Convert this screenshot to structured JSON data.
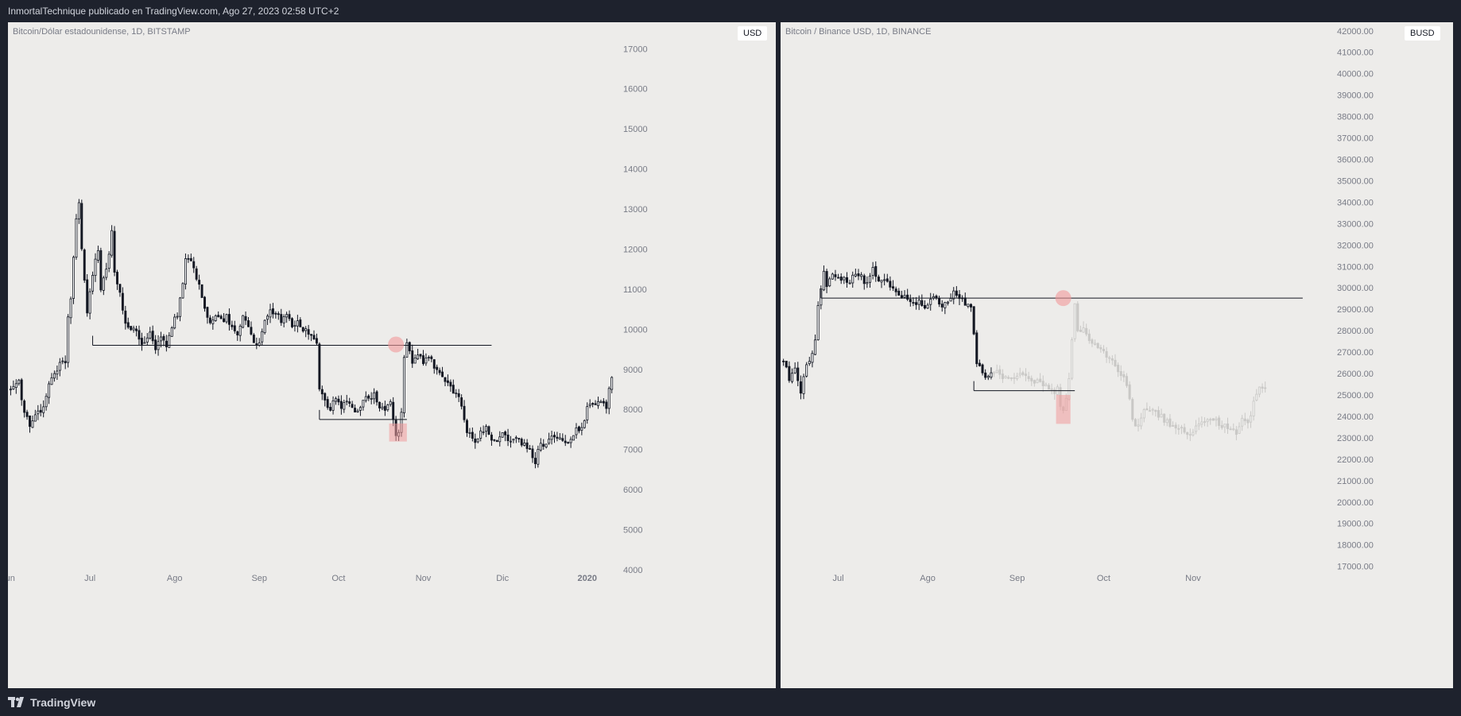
{
  "header": {
    "publisher_line": "InmortalTechnique publicado en TradingView.com, Ago 27, 2023 02:58 UTC+2"
  },
  "footer": {
    "brand": "TradingView"
  },
  "chart_data": [
    {
      "type": "candlestick",
      "title": "Bitcoin/Dólar estadounidense, 1D, BITSTAMP",
      "currency": "USD",
      "yaxis_ticks": [
        "4000",
        "5000",
        "6000",
        "7000",
        "8000",
        "9000",
        "10000",
        "11000",
        "12000",
        "13000",
        "14000",
        "15000",
        "16000",
        "17000"
      ],
      "ylim": [
        3980,
        17660
      ],
      "xaxis_ticks": [
        {
          "label": "Jun",
          "day": -1
        },
        {
          "label": "Jul",
          "day": 29
        },
        {
          "label": "Ago",
          "day": 60
        },
        {
          "label": "Sep",
          "day": 91
        },
        {
          "label": "Oct",
          "day": 120
        },
        {
          "label": "Nov",
          "day": 151
        },
        {
          "label": "Dic",
          "day": 180
        },
        {
          "label": "2020",
          "day": 211
        }
      ],
      "xlim": [
        -1,
        223
      ],
      "close_path": [
        [
          0,
          8500
        ],
        [
          3,
          8700
        ],
        [
          5,
          7900
        ],
        [
          7,
          7600
        ],
        [
          9,
          7800
        ],
        [
          12,
          8100
        ],
        [
          14,
          8600
        ],
        [
          16,
          8900
        ],
        [
          18,
          9100
        ],
        [
          20,
          9200
        ],
        [
          21,
          10300
        ],
        [
          22,
          10800
        ],
        [
          23,
          11800
        ],
        [
          24,
          12800
        ],
        [
          25,
          13200
        ],
        [
          26,
          12000
        ],
        [
          27,
          11200
        ],
        [
          28,
          10400
        ],
        [
          29,
          11000
        ],
        [
          31,
          11700
        ],
        [
          32,
          11900
        ],
        [
          33,
          11000
        ],
        [
          35,
          11500
        ],
        [
          37,
          12400
        ],
        [
          38,
          11400
        ],
        [
          40,
          11000
        ],
        [
          41,
          10400
        ],
        [
          43,
          10000
        ],
        [
          45,
          10100
        ],
        [
          47,
          9700
        ],
        [
          49,
          9600
        ],
        [
          51,
          9900
        ],
        [
          53,
          9500
        ],
        [
          55,
          9800
        ],
        [
          57,
          9600
        ],
        [
          59,
          10100
        ],
        [
          61,
          10400
        ],
        [
          63,
          11200
        ],
        [
          64,
          11700
        ],
        [
          65,
          11800
        ],
        [
          67,
          11500
        ],
        [
          69,
          11100
        ],
        [
          71,
          10600
        ],
        [
          73,
          10100
        ],
        [
          75,
          10400
        ],
        [
          77,
          10200
        ],
        [
          79,
          10300
        ],
        [
          81,
          10000
        ],
        [
          83,
          9900
        ],
        [
          85,
          10400
        ],
        [
          87,
          10100
        ],
        [
          89,
          9700
        ],
        [
          91,
          9600
        ],
        [
          93,
          10200
        ],
        [
          95,
          10500
        ],
        [
          97,
          10400
        ],
        [
          99,
          10200
        ],
        [
          101,
          10300
        ],
        [
          103,
          10100
        ],
        [
          105,
          10200
        ],
        [
          107,
          10000
        ],
        [
          110,
          9800
        ],
        [
          112,
          9600
        ],
        [
          113,
          8500
        ],
        [
          115,
          8200
        ],
        [
          117,
          8000
        ],
        [
          119,
          8300
        ],
        [
          121,
          8100
        ],
        [
          123,
          8200
        ],
        [
          125,
          8000
        ],
        [
          127,
          7900
        ],
        [
          129,
          8200
        ],
        [
          131,
          8300
        ],
        [
          133,
          8400
        ],
        [
          135,
          8100
        ],
        [
          137,
          8000
        ],
        [
          139,
          8200
        ],
        [
          140,
          7700
        ],
        [
          141,
          7400
        ],
        [
          142,
          7500
        ],
        [
          143,
          8000
        ],
        [
          144,
          9300
        ],
        [
          145,
          9600
        ],
        [
          147,
          9200
        ],
        [
          149,
          9300
        ],
        [
          151,
          9200
        ],
        [
          153,
          9300
        ],
        [
          155,
          9100
        ],
        [
          157,
          8900
        ],
        [
          159,
          8700
        ],
        [
          161,
          8500
        ],
        [
          163,
          8400
        ],
        [
          165,
          8100
        ],
        [
          167,
          7500
        ],
        [
          169,
          7300
        ],
        [
          170,
          7100
        ],
        [
          172,
          7400
        ],
        [
          174,
          7500
        ],
        [
          176,
          7300
        ],
        [
          178,
          7200
        ],
        [
          180,
          7400
        ],
        [
          182,
          7200
        ],
        [
          184,
          7300
        ],
        [
          186,
          7200
        ],
        [
          188,
          7100
        ],
        [
          190,
          7000
        ],
        [
          191,
          6800
        ],
        [
          192,
          6700
        ],
        [
          194,
          7200
        ],
        [
          196,
          7100
        ],
        [
          198,
          7300
        ],
        [
          200,
          7200
        ],
        [
          202,
          7300
        ],
        [
          204,
          7100
        ],
        [
          205,
          7200
        ],
        [
          207,
          7500
        ],
        [
          208,
          7400
        ],
        [
          210,
          7800
        ],
        [
          212,
          8200
        ],
        [
          214,
          8100
        ],
        [
          216,
          8200
        ],
        [
          218,
          8100
        ],
        [
          220,
          8800
        ]
      ],
      "annotations": {
        "hline_resistance": {
          "y": 9600,
          "x_from": 30,
          "x_to": 176
        },
        "hline_support": {
          "y": 7750,
          "x_from": 113,
          "x_to": 145
        },
        "circle": {
          "x": 141,
          "y": 9620
        },
        "box": {
          "x_from": 138.5,
          "x_to": 145,
          "y_from": 7200,
          "y_to": 7650
        }
      }
    },
    {
      "type": "candlestick",
      "title": "Bitcoin / Binance USD, 1D, BINANCE",
      "currency": "BUSD",
      "yaxis_ticks": [
        "17000.00",
        "18000.00",
        "19000.00",
        "20000.00",
        "21000.00",
        "22000.00",
        "23000.00",
        "24000.00",
        "25000.00",
        "26000.00",
        "27000.00",
        "28000.00",
        "29000.00",
        "30000.00",
        "31000.00",
        "32000.00",
        "33000.00",
        "34000.00",
        "35000.00",
        "36000.00",
        "37000.00",
        "38000.00",
        "39000.00",
        "40000.00",
        "41000.00",
        "42000.00"
      ],
      "ylim": [
        16800,
        42400
      ],
      "xaxis_ticks": [
        {
          "label": "Jul",
          "day": 19
        },
        {
          "label": "Ago",
          "day": 50
        },
        {
          "label": "Sep",
          "day": 81
        },
        {
          "label": "Oct",
          "day": 111
        },
        {
          "label": "Nov",
          "day": 142
        }
      ],
      "xlim": [
        -1,
        185
      ],
      "close_path": [
        [
          0,
          26600
        ],
        [
          2,
          25800
        ],
        [
          4,
          26300
        ],
        [
          6,
          25000
        ],
        [
          8,
          26500
        ],
        [
          10,
          26800
        ],
        [
          11,
          27500
        ],
        [
          12,
          29200
        ],
        [
          13,
          30000
        ],
        [
          14,
          30700
        ],
        [
          15,
          30200
        ],
        [
          17,
          30500
        ],
        [
          19,
          30400
        ],
        [
          21,
          30600
        ],
        [
          23,
          30200
        ],
        [
          25,
          30700
        ],
        [
          27,
          30500
        ],
        [
          29,
          30100
        ],
        [
          31,
          31000
        ],
        [
          33,
          30300
        ],
        [
          35,
          30400
        ],
        [
          37,
          30100
        ],
        [
          39,
          29800
        ],
        [
          41,
          29600
        ],
        [
          43,
          29500
        ],
        [
          45,
          29400
        ],
        [
          47,
          29300
        ],
        [
          49,
          29200
        ],
        [
          51,
          29400
        ],
        [
          53,
          29500
        ],
        [
          55,
          29100
        ],
        [
          57,
          29300
        ],
        [
          59,
          29800
        ],
        [
          61,
          29600
        ],
        [
          63,
          29300
        ],
        [
          65,
          29100
        ],
        [
          66,
          27800
        ],
        [
          67,
          26500
        ],
        [
          69,
          26000
        ],
        [
          71,
          25900
        ],
        [
          73,
          26100
        ],
        [
          75,
          26000
        ],
        [
          77,
          25800
        ],
        [
          80,
          25700
        ],
        [
          82,
          25900
        ],
        [
          85,
          25800
        ],
        [
          88,
          25600
        ],
        [
          90,
          25400
        ],
        [
          92,
          25300
        ],
        [
          94,
          25100
        ],
        [
          95,
          25400
        ],
        [
          96,
          24500
        ],
        [
          97,
          24200
        ],
        [
          98,
          24800
        ],
        [
          99,
          25900
        ],
        [
          100,
          27500
        ],
        [
          101,
          29200
        ],
        [
          102,
          28000
        ],
        [
          104,
          28200
        ],
        [
          106,
          27600
        ],
        [
          108,
          27500
        ],
        [
          110,
          27100
        ],
        [
          112,
          26800
        ],
        [
          114,
          26500
        ],
        [
          116,
          26200
        ],
        [
          118,
          25900
        ],
        [
          119,
          25500
        ],
        [
          120,
          24700
        ],
        [
          121,
          23900
        ],
        [
          122,
          23400
        ],
        [
          123,
          23700
        ],
        [
          125,
          24200
        ],
        [
          127,
          24400
        ],
        [
          129,
          24200
        ],
        [
          131,
          24000
        ],
        [
          133,
          23700
        ],
        [
          135,
          23500
        ],
        [
          137,
          23400
        ],
        [
          139,
          23300
        ],
        [
          141,
          23100
        ],
        [
          143,
          23600
        ],
        [
          145,
          23700
        ],
        [
          147,
          24000
        ],
        [
          149,
          23800
        ],
        [
          151,
          23700
        ],
        [
          153,
          23500
        ],
        [
          155,
          23400
        ],
        [
          157,
          23300
        ],
        [
          159,
          23800
        ],
        [
          161,
          23700
        ],
        [
          163,
          24600
        ],
        [
          165,
          25500
        ],
        [
          167,
          25200
        ]
      ],
      "annotations": {
        "hline_resistance": {
          "y": 29520,
          "x_from": 13,
          "x_to": 180
        },
        "hline_support": {
          "y": 25200,
          "x_from": 66,
          "x_to": 101
        },
        "circle": {
          "x": 97,
          "y": 29520
        },
        "box": {
          "x_from": 94.5,
          "x_to": 99.5,
          "y_from": 23650,
          "y_to": 25000
        }
      }
    }
  ]
}
